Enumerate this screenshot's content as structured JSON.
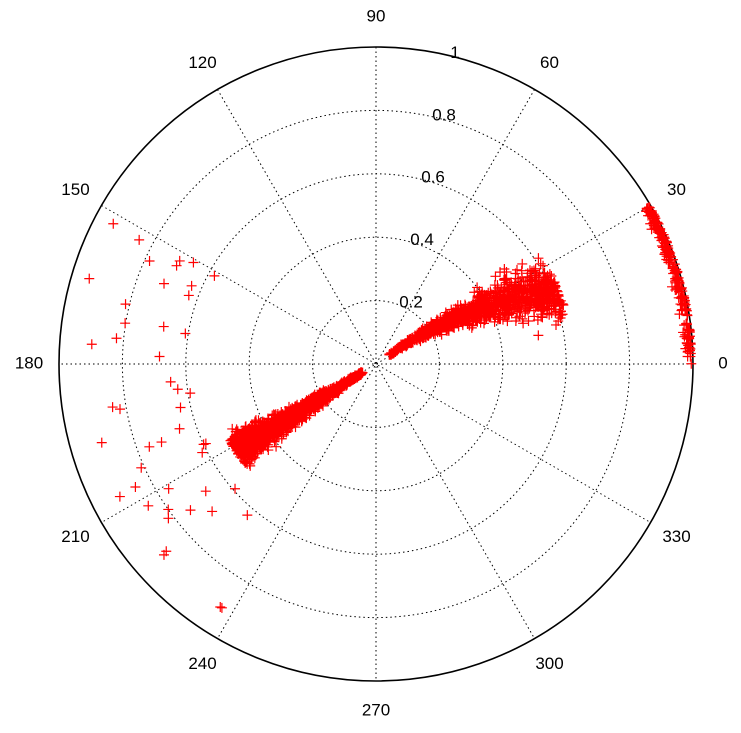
{
  "chart_data": {
    "type": "scatter",
    "coordinate_system": "polar",
    "title": "",
    "angle_unit": "degrees",
    "angle_ticks": [
      0,
      30,
      60,
      90,
      120,
      150,
      180,
      210,
      240,
      270,
      300,
      330
    ],
    "angle_tick_labels": [
      "0",
      "30",
      "60",
      "90",
      "120",
      "150",
      "180",
      "210",
      "240",
      "270",
      "300",
      "330"
    ],
    "radial_range": [
      0,
      1
    ],
    "radial_ticks": [
      0.2,
      0.4,
      0.6,
      0.8,
      1
    ],
    "radial_tick_labels": [
      "0.2",
      "0.4",
      "0.6",
      "0.8",
      "1"
    ],
    "grid": true,
    "marker": "+",
    "marker_color": "#ff0000",
    "series": [
      {
        "clusters": [
          {
            "region": "dense band, lower-left arm",
            "theta_range_deg": [
              200,
              225
            ],
            "r_range": [
              0.05,
              0.52
            ],
            "approx_count": 1400
          },
          {
            "region": "dense band, upper-right arm",
            "theta_range_deg": [
              12,
              40
            ],
            "r_range": [
              0.05,
              0.62
            ],
            "approx_count": 1100
          },
          {
            "region": "arc near outer rim",
            "theta_range_deg": [
              0,
              30
            ],
            "r_range": [
              0.95,
              1.0
            ],
            "approx_count": 220
          },
          {
            "region": "scattered outliers",
            "theta_range_deg": [
              150,
              240
            ],
            "r_range": [
              0.55,
              0.95
            ],
            "approx_count": 40
          }
        ],
        "sample_points": [
          {
            "theta": 18,
            "r": 0.55
          },
          {
            "theta": 22,
            "r": 0.42
          },
          {
            "theta": 25,
            "r": 0.35
          },
          {
            "theta": 28,
            "r": 0.58
          },
          {
            "theta": 14,
            "r": 0.6
          },
          {
            "theta": 10,
            "r": 0.52
          },
          {
            "theta": 31,
            "r": 0.28
          },
          {
            "theta": 35,
            "r": 0.18
          },
          {
            "theta": 38,
            "r": 0.1
          },
          {
            "theta": 28,
            "r": 0.99
          },
          {
            "theta": 20,
            "r": 0.99
          },
          {
            "theta": 10,
            "r": 0.99
          },
          {
            "theta": 3,
            "r": 0.99
          },
          {
            "theta": 207,
            "r": 0.45
          },
          {
            "theta": 212,
            "r": 0.38
          },
          {
            "theta": 215,
            "r": 0.25
          },
          {
            "theta": 210,
            "r": 0.52
          },
          {
            "theta": 218,
            "r": 0.15
          },
          {
            "theta": 205,
            "r": 0.6
          },
          {
            "theta": 200,
            "r": 0.72
          },
          {
            "theta": 215,
            "r": 0.8
          },
          {
            "theta": 222,
            "r": 0.9
          },
          {
            "theta": 196,
            "r": 0.9
          },
          {
            "theta": 170,
            "r": 0.68
          },
          {
            "theta": 190,
            "r": 0.82
          }
        ]
      }
    ]
  }
}
